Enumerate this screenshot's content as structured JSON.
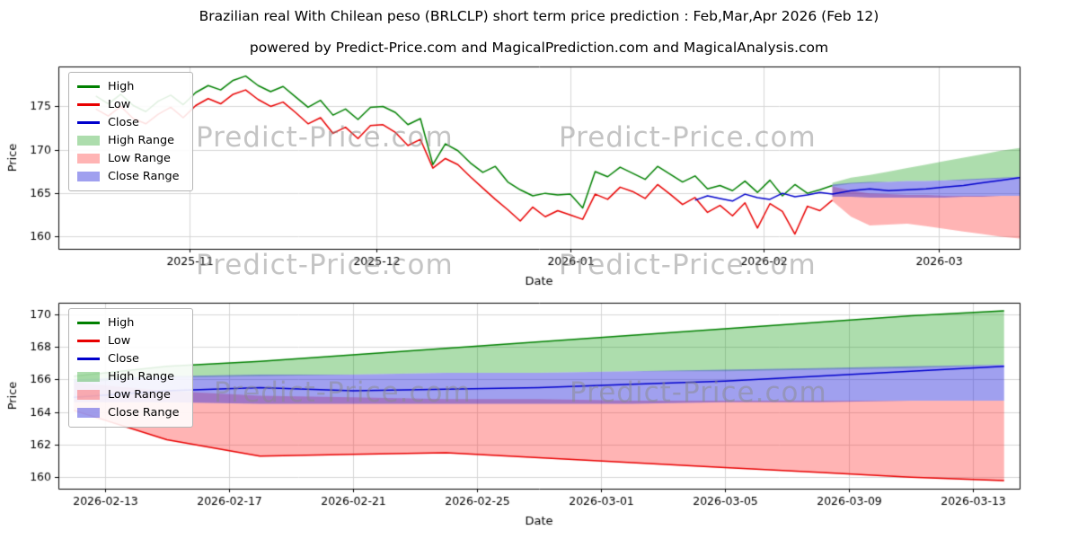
{
  "title": "Brazilian real With Chilean peso (BRLCLP) short term price prediction : Feb,Mar,Apr 2026 (Feb 12)",
  "subtitle": "powered by Predict-Price.com and MagicalPrediction.com and MagicalAnalysis.com",
  "watermark_text": "Predict-Price.com",
  "legend_labels": [
    "High",
    "Low",
    "Close",
    "High Range",
    "Low Range",
    "Close Range"
  ],
  "colors": {
    "high": "#008000",
    "low": "#e80000",
    "close": "#0000cc",
    "high_range": "rgba(0,150,0,0.32)",
    "low_range": "rgba(255,40,40,0.35)",
    "close_range": "rgba(45,45,220,0.45)",
    "grid": "#d6d6d6",
    "spine": "#000000",
    "tick_text": "#000000"
  },
  "chart_data": [
    {
      "type": "line",
      "name": "history_and_forecast",
      "xlabel": "Date",
      "ylabel": "Price",
      "x_domain": [
        0,
        154
      ],
      "y_domain": [
        158.6,
        179.6
      ],
      "x_ticks": [
        {
          "v": 21,
          "label": "2025-11"
        },
        {
          "v": 51,
          "label": "2025-12"
        },
        {
          "v": 82,
          "label": "2026-01"
        },
        {
          "v": 113,
          "label": "2026-02"
        },
        {
          "v": 141,
          "label": "2026-03"
        }
      ],
      "y_ticks": [
        160,
        165,
        170,
        175
      ],
      "bands": [
        {
          "name": "High Range",
          "colorKey": "high_range",
          "x": [
            124,
            127,
            130,
            133,
            136,
            139,
            142,
            145,
            148,
            151,
            154
          ],
          "upper": [
            166.2,
            166.8,
            167.1,
            167.5,
            167.9,
            168.3,
            168.7,
            169.1,
            169.5,
            169.9,
            170.2
          ],
          "lower": [
            165.8,
            166.1,
            166.2,
            166.3,
            166.4,
            166.4,
            166.5,
            166.5,
            166.6,
            166.7,
            166.9
          ]
        },
        {
          "name": "Low Range",
          "colorKey": "low_range",
          "x": [
            124,
            127,
            130,
            133,
            136,
            139,
            142,
            145,
            148,
            151,
            154
          ],
          "upper": [
            165.8,
            165.3,
            165.0,
            164.9,
            164.8,
            164.8,
            164.7,
            164.7,
            164.7,
            164.7,
            164.7
          ],
          "lower": [
            164.1,
            162.3,
            161.3,
            161.4,
            161.5,
            161.2,
            160.9,
            160.6,
            160.3,
            160.0,
            159.8
          ]
        },
        {
          "name": "Close Range",
          "colorKey": "close_range",
          "x": [
            124,
            127,
            130,
            133,
            136,
            139,
            142,
            145,
            148,
            151,
            154
          ],
          "upper": [
            166.0,
            166.2,
            166.3,
            166.3,
            166.4,
            166.4,
            166.5,
            166.6,
            166.7,
            166.8,
            166.9
          ],
          "lower": [
            164.6,
            164.6,
            164.5,
            164.5,
            164.5,
            164.5,
            164.5,
            164.6,
            164.6,
            164.7,
            164.7
          ]
        }
      ],
      "series": [
        {
          "name": "High",
          "colorKey": "high",
          "x0": 6,
          "dx": 2,
          "y": [
            176.2,
            175.3,
            176.4,
            175.1,
            174.4,
            175.6,
            176.3,
            175.2,
            176.6,
            177.4,
            176.9,
            178.0,
            178.5,
            177.4,
            176.7,
            177.3,
            176.1,
            174.9,
            175.7,
            174.0,
            174.7,
            173.5,
            174.9,
            175.0,
            174.3,
            172.9,
            173.6,
            168.3,
            170.7,
            169.9,
            168.5,
            167.4,
            168.1,
            166.3,
            165.4,
            164.7,
            165.0,
            164.8,
            164.9,
            163.3,
            167.5,
            166.9,
            168.0,
            167.3,
            166.6,
            168.1,
            167.2,
            166.3,
            167.0,
            165.5,
            165.9,
            165.3,
            166.4,
            165.1,
            166.5,
            164.7,
            166.0,
            165.0,
            165.4,
            165.9
          ]
        },
        {
          "name": "Low",
          "colorKey": "low",
          "x0": 6,
          "dx": 2,
          "y": [
            174.7,
            173.9,
            175.0,
            173.6,
            173.0,
            174.1,
            174.9,
            173.7,
            175.1,
            175.9,
            175.3,
            176.4,
            176.9,
            175.8,
            175.0,
            175.5,
            174.3,
            173.0,
            173.7,
            171.9,
            172.6,
            171.3,
            172.8,
            172.9,
            172.0,
            170.5,
            171.2,
            167.9,
            169.0,
            168.3,
            166.9,
            165.6,
            164.3,
            163.1,
            161.8,
            163.4,
            162.3,
            163.0,
            162.5,
            162.0,
            164.9,
            164.3,
            165.7,
            165.2,
            164.4,
            166.0,
            164.9,
            163.7,
            164.5,
            162.8,
            163.6,
            162.4,
            163.9,
            161.0,
            163.8,
            162.9,
            160.3,
            163.5,
            163.0,
            164.2
          ]
        },
        {
          "name": "Close",
          "colorKey": "close",
          "x": [
            102,
            104,
            106,
            108,
            110,
            112,
            114,
            116,
            118,
            120,
            122,
            124,
            127,
            130,
            133,
            136,
            139,
            142,
            145,
            148,
            151,
            154
          ],
          "y": [
            164.2,
            164.7,
            164.4,
            164.1,
            164.9,
            164.5,
            164.3,
            165.0,
            164.6,
            164.8,
            165.1,
            164.9,
            165.3,
            165.5,
            165.3,
            165.4,
            165.5,
            165.7,
            165.9,
            166.2,
            166.5,
            166.8
          ]
        }
      ]
    },
    {
      "type": "line",
      "name": "forecast_detail",
      "xlabel": "Date",
      "ylabel": "Price",
      "x_domain": [
        123.5,
        154.5
      ],
      "y_domain": [
        159.3,
        170.7
      ],
      "x_ticks": [
        {
          "v": 125,
          "label": "2026-02-13"
        },
        {
          "v": 129,
          "label": "2026-02-17"
        },
        {
          "v": 133,
          "label": "2026-02-21"
        },
        {
          "v": 137,
          "label": "2026-02-25"
        },
        {
          "v": 141,
          "label": "2026-03-01"
        },
        {
          "v": 145,
          "label": "2026-03-05"
        },
        {
          "v": 149,
          "label": "2026-03-09"
        },
        {
          "v": 153,
          "label": "2026-03-13"
        }
      ],
      "y_ticks": [
        160,
        162,
        164,
        166,
        168,
        170
      ],
      "bands": [
        {
          "name": "High Range",
          "colorKey": "high_range",
          "x": [
            124,
            127,
            130,
            133,
            136,
            139,
            142,
            145,
            148,
            151,
            154
          ],
          "upper": [
            166.2,
            166.8,
            167.1,
            167.5,
            167.9,
            168.3,
            168.7,
            169.1,
            169.5,
            169.9,
            170.2
          ],
          "lower": [
            165.8,
            166.1,
            166.2,
            166.3,
            166.4,
            166.4,
            166.5,
            166.5,
            166.6,
            166.7,
            166.9
          ]
        },
        {
          "name": "Low Range",
          "colorKey": "low_range",
          "x": [
            124,
            127,
            130,
            133,
            136,
            139,
            142,
            145,
            148,
            151,
            154
          ],
          "upper": [
            165.8,
            165.3,
            165.0,
            164.9,
            164.8,
            164.8,
            164.7,
            164.7,
            164.7,
            164.7,
            164.7
          ],
          "lower": [
            164.1,
            162.3,
            161.3,
            161.4,
            161.5,
            161.2,
            160.9,
            160.6,
            160.3,
            160.0,
            159.8
          ]
        },
        {
          "name": "Close Range",
          "colorKey": "close_range",
          "x": [
            124,
            127,
            130,
            133,
            136,
            139,
            142,
            145,
            148,
            151,
            154
          ],
          "upper": [
            166.0,
            166.2,
            166.3,
            166.3,
            166.4,
            166.4,
            166.5,
            166.6,
            166.7,
            166.8,
            166.9
          ],
          "lower": [
            164.6,
            164.6,
            164.5,
            164.5,
            164.5,
            164.5,
            164.5,
            164.6,
            164.6,
            164.7,
            164.7
          ]
        }
      ],
      "series": [
        {
          "name": "High",
          "colorKey": "high",
          "x": [
            124,
            127,
            130,
            133,
            136,
            139,
            142,
            145,
            148,
            151,
            154
          ],
          "y": [
            166.2,
            166.8,
            167.1,
            167.5,
            167.9,
            168.3,
            168.7,
            169.1,
            169.5,
            169.9,
            170.2
          ]
        },
        {
          "name": "Low",
          "colorKey": "low",
          "x": [
            124,
            127,
            130,
            133,
            136,
            139,
            142,
            145,
            148,
            151,
            154
          ],
          "y": [
            164.1,
            162.3,
            161.3,
            161.4,
            161.5,
            161.2,
            160.9,
            160.6,
            160.3,
            160.0,
            159.8
          ]
        },
        {
          "name": "Close",
          "colorKey": "close",
          "x": [
            124,
            127,
            130,
            133,
            136,
            139,
            142,
            145,
            148,
            151,
            154
          ],
          "y": [
            164.9,
            165.3,
            165.5,
            165.3,
            165.4,
            165.5,
            165.7,
            165.9,
            166.2,
            166.5,
            166.8
          ]
        }
      ]
    }
  ]
}
